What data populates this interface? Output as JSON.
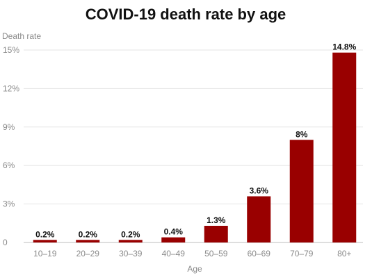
{
  "chart_data": {
    "type": "bar",
    "title": "COVID-19 death rate by age",
    "xlabel": "Age",
    "ylabel": "Death rate",
    "categories": [
      "10–19",
      "20–29",
      "30–39",
      "40–49",
      "50–59",
      "60–69",
      "70–79",
      "80+"
    ],
    "values": [
      0.2,
      0.2,
      0.2,
      0.4,
      1.3,
      3.6,
      8,
      14.8
    ],
    "value_labels": [
      "0.2%",
      "0.2%",
      "0.2%",
      "0.4%",
      "1.3%",
      "3.6%",
      "8%",
      "14.8%"
    ],
    "ylim": [
      0,
      15
    ],
    "yticks": [
      0,
      3,
      6,
      9,
      12,
      15
    ],
    "ytick_labels": [
      "0",
      "3%",
      "6%",
      "9%",
      "12%",
      "15%"
    ],
    "grid": true,
    "legend": "none",
    "bar_color": "#990000"
  }
}
